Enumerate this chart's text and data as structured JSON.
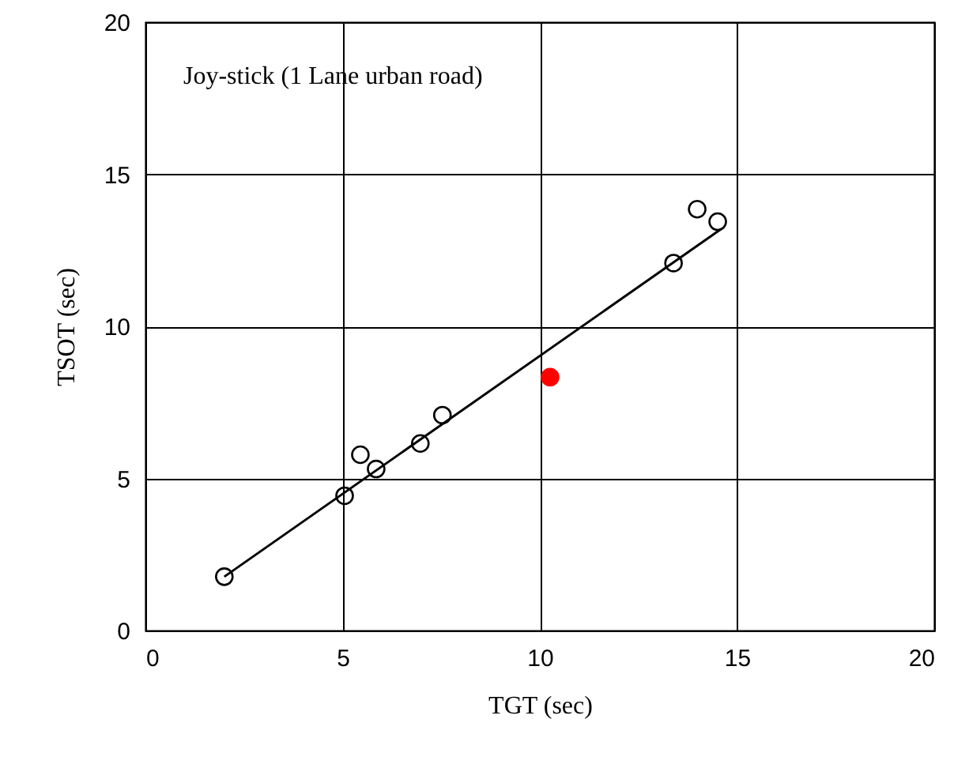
{
  "chart_data": {
    "type": "scatter",
    "xlabel": "TGT (sec)",
    "ylabel": "TSOT (sec)",
    "annotations": [
      "Joy-stick (1 Lane urban road)"
    ],
    "xlim": [
      0,
      20
    ],
    "xticks": [
      0,
      5,
      10,
      15,
      20
    ],
    "ylim": [
      0,
      20
    ],
    "yticks": [
      0,
      5,
      10,
      15,
      20
    ],
    "grid": true,
    "series": [
      {
        "color": "#000000",
        "marker": "circle",
        "x": [
          2.0,
          5.05,
          5.45,
          5.85,
          6.97,
          7.53,
          13.39,
          13.99,
          14.51
        ],
        "values": [
          1.77,
          4.43,
          5.78,
          5.31,
          6.15,
          7.08,
          12.08,
          13.85,
          13.44
        ]
      },
      {
        "type": "scatter",
        "marker": "circle",
        "color": "#ff0000",
        "x": [
          10.26
        ],
        "values": [
          8.33
        ]
      },
      {
        "type": "line",
        "marker": "none",
        "color": "#000000",
        "x": [
          2.0,
          14.6
        ],
        "values": [
          1.77,
          13.2
        ]
      }
    ]
  }
}
